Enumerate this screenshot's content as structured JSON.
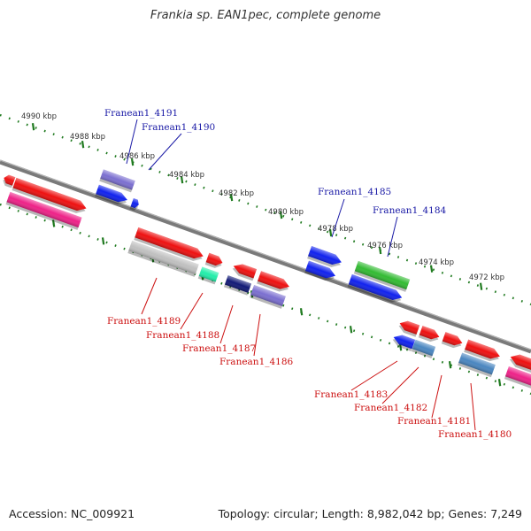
{
  "title": "Frankia sp. EAN1pec, complete genome",
  "footer": {
    "accession": "Accession: NC_009921",
    "summary": "Topology: circular; Length: 8,982,042 bp; Genes: 7,249"
  },
  "tick_labels": [
    "4990 kbp",
    "4988 kbp",
    "4986 kbp",
    "4984 kbp",
    "4982 kbp",
    "4980 kbp",
    "4978 kbp",
    "4976 kbp",
    "4974 kbp",
    "4972 kbp"
  ],
  "labels_upper": [
    "Franean1_4191",
    "Franean1_4190",
    "Franean1_4185",
    "Franean1_4184"
  ],
  "labels_lower": [
    "Franean1_4189",
    "Franean1_4188",
    "Franean1_4187",
    "Franean1_4186",
    "Franean1_4183",
    "Franean1_4182",
    "Franean1_4181",
    "Franean1_4180"
  ],
  "colors": {
    "upper_label": "#1a1aa6",
    "lower_label": "#cc1111",
    "axis": "#7a7a7a",
    "ticks": "#1f7a1f",
    "red": "#ee1111",
    "pink": "#ee2288",
    "blue": "#1122ee",
    "light_purple": "#7b6fd0",
    "gray": "#c0c0c0",
    "green": "#33bb33",
    "teal": "#22eeaa",
    "navy": "#121a77",
    "steel_blue": "#4a86c0"
  }
}
